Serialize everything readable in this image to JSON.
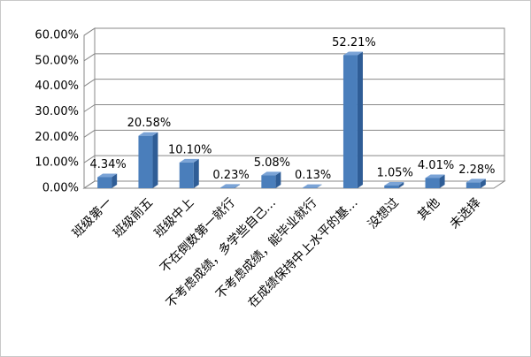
{
  "chart_data": {
    "type": "bar",
    "categories": [
      "班级第一",
      "班级前五",
      "班级中上",
      "不在倒数第一就行",
      "不考虑成绩，多学些自己…",
      "不考虑成绩，能毕业就行",
      "在成绩保持中上水平的基…",
      "没想过",
      "其他",
      "未选择"
    ],
    "values": [
      4.34,
      20.58,
      10.1,
      0.23,
      5.08,
      0.13,
      52.21,
      1.05,
      4.01,
      2.28
    ],
    "value_labels": [
      "4.34%",
      "20.58%",
      "10.10%",
      "0.23%",
      "5.08%",
      "0.13%",
      "52.21%",
      "1.05%",
      "4.01%",
      "2.28%"
    ],
    "color": "#4a7ebb",
    "ylim": [
      0,
      60
    ],
    "yticks": [
      {
        "value": 0,
        "label": "0.00%"
      },
      {
        "value": 10,
        "label": "10.00%"
      },
      {
        "value": 20,
        "label": "20.00%"
      },
      {
        "value": 30,
        "label": "30.00%"
      },
      {
        "value": 40,
        "label": "40.00%"
      },
      {
        "value": 50,
        "label": "50.00%"
      },
      {
        "value": 60,
        "label": "60.00%"
      }
    ],
    "grid": true
  }
}
